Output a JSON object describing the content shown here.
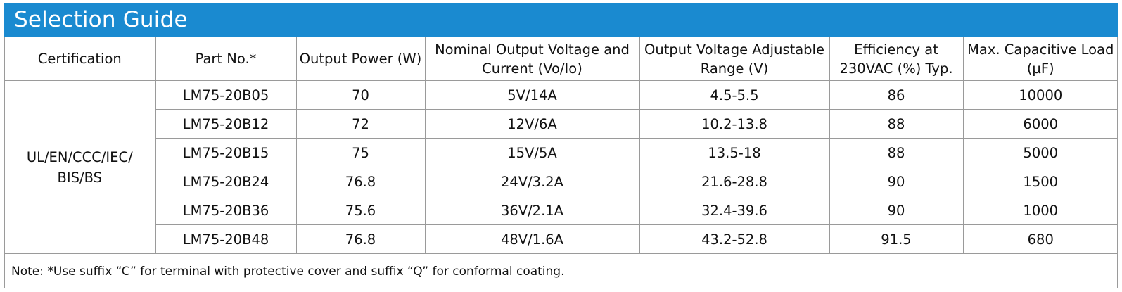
{
  "title": "Selection Guide",
  "columns": [
    "Certification",
    "Part No.*",
    "Output Power (W)",
    "Nominal Output Voltage and Current (Vo/Io)",
    "Output Voltage Adjustable Range (V)",
    "Efficiency at 230VAC (%) Typ.",
    "Max. Capacitive Load (µF)"
  ],
  "certification": "UL/EN/CCC/IEC/ BIS/BS",
  "rows": [
    {
      "part_no": "LM75-20B05",
      "power": "70",
      "voltage_current": "5V/14A",
      "adj_range": "4.5-5.5",
      "efficiency": "86",
      "cap_load": "10000"
    },
    {
      "part_no": "LM75-20B12",
      "power": "72",
      "voltage_current": "12V/6A",
      "adj_range": "10.2-13.8",
      "efficiency": "88",
      "cap_load": "6000"
    },
    {
      "part_no": "LM75-20B15",
      "power": "75",
      "voltage_current": "15V/5A",
      "adj_range": "13.5-18",
      "efficiency": "88",
      "cap_load": "5000"
    },
    {
      "part_no": "LM75-20B24",
      "power": "76.8",
      "voltage_current": "24V/3.2A",
      "adj_range": "21.6-28.8",
      "efficiency": "90",
      "cap_load": "1500"
    },
    {
      "part_no": "LM75-20B36",
      "power": "75.6",
      "voltage_current": "36V/2.1A",
      "adj_range": "32.4-39.6",
      "efficiency": "90",
      "cap_load": "1000"
    },
    {
      "part_no": "LM75-20B48",
      "power": "76.8",
      "voltage_current": "48V/1.6A",
      "adj_range": "43.2-52.8",
      "efficiency": "91.5",
      "cap_load": "680"
    }
  ],
  "note": "Note: *Use suffix “C” for terminal with protective cover and suffix “Q” for conformal coating.",
  "colors": {
    "title_bar": "#1a8ad0",
    "border": "#9a9a9a"
  }
}
